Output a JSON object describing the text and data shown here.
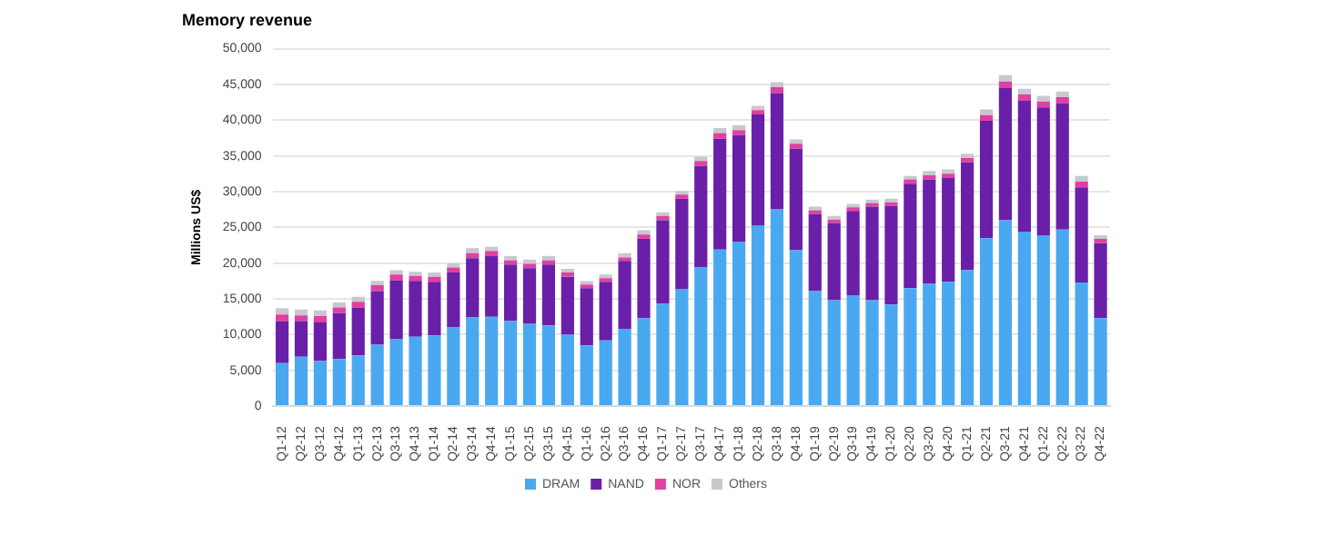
{
  "chart_data": {
    "type": "bar",
    "title": "Memory revenue",
    "ylabel": "Millions US$",
    "stacked": true,
    "grid": "y",
    "legend": "bottom",
    "categories": [
      "Q1-12",
      "Q2-12",
      "Q3-12",
      "Q4-12",
      "Q1-13",
      "Q2-13",
      "Q3-13",
      "Q4-13",
      "Q1-14",
      "Q2-14",
      "Q3-14",
      "Q4-14",
      "Q1-15",
      "Q2-15",
      "Q3-15",
      "Q4-15",
      "Q1-16",
      "Q2-16",
      "Q3-16",
      "Q4-16",
      "Q1-17",
      "Q2-17",
      "Q3-17",
      "Q4-17",
      "Q1-18",
      "Q2-18",
      "Q3-18",
      "Q4-18",
      "Q1-19",
      "Q2-19",
      "Q3-19",
      "Q4-19",
      "Q1-20",
      "Q2-20",
      "Q3-20",
      "Q4-20",
      "Q1-21",
      "Q2-21",
      "Q3-21",
      "Q4-21",
      "Q1-22",
      "Q2-22",
      "Q3-22",
      "Q4-22"
    ],
    "series": [
      {
        "name": "DRAM",
        "color": "#4aa8f0",
        "values": [
          6000,
          6900,
          6300,
          6600,
          7100,
          8600,
          9400,
          9700,
          9900,
          11000,
          12400,
          12500,
          11900,
          11500,
          11300,
          10000,
          8500,
          9200,
          10800,
          12300,
          14300,
          16400,
          19400,
          21900,
          23000,
          25300,
          27600,
          21800,
          16100,
          14800,
          15500,
          14800,
          14200,
          16500,
          17100,
          17400,
          19000,
          23500,
          26000,
          24400,
          23900,
          24700,
          17300,
          12300
        ]
      },
      {
        "name": "NAND",
        "color": "#6a1fa8",
        "values": [
          5900,
          5000,
          5400,
          6400,
          6700,
          7500,
          8200,
          7800,
          7500,
          7700,
          8300,
          8500,
          7900,
          7800,
          8500,
          8100,
          8000,
          8200,
          9500,
          11100,
          11700,
          12600,
          14200,
          15500,
          14900,
          15500,
          16200,
          14200,
          10800,
          10800,
          11800,
          13100,
          13800,
          14600,
          14600,
          14500,
          15100,
          16400,
          18500,
          18300,
          17900,
          17700,
          13300,
          10500
        ]
      },
      {
        "name": "NOR",
        "color": "#e040a0",
        "values": [
          900,
          800,
          900,
          800,
          800,
          800,
          800,
          700,
          700,
          700,
          700,
          700,
          600,
          600,
          600,
          600,
          500,
          500,
          500,
          600,
          600,
          600,
          700,
          800,
          700,
          600,
          800,
          700,
          500,
          500,
          500,
          500,
          500,
          600,
          600,
          600,
          600,
          800,
          900,
          900,
          800,
          800,
          800,
          600
        ]
      },
      {
        "name": "Others",
        "color": "#c8c8d0",
        "values": [
          900,
          800,
          800,
          700,
          700,
          600,
          600,
          600,
          600,
          600,
          700,
          600,
          600,
          600,
          600,
          500,
          500,
          500,
          600,
          600,
          500,
          500,
          600,
          700,
          700,
          600,
          700,
          600,
          500,
          500,
          500,
          500,
          500,
          500,
          600,
          600,
          600,
          800,
          900,
          800,
          800,
          800,
          800,
          500
        ]
      }
    ],
    "ylim": [
      0,
      50000
    ],
    "yticks": [
      0,
      {
        "value": 5000,
        "label": "5,000"
      },
      {
        "value": 10000,
        "label": "10,000"
      },
      {
        "value": 15000,
        "label": "15,000"
      },
      {
        "value": 20000,
        "label": "20,000"
      },
      {
        "value": 25000,
        "label": "25,000"
      },
      {
        "value": 30000,
        "label": "30,000"
      },
      {
        "value": 35000,
        "label": "35,000"
      },
      {
        "value": 40000,
        "label": "40,000"
      },
      {
        "value": 45000,
        "label": "45,000"
      },
      {
        "value": 50000,
        "label": "50,000"
      }
    ]
  }
}
